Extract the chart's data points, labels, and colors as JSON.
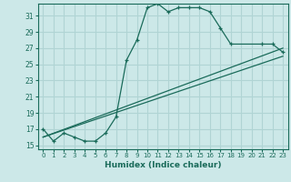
{
  "title": "",
  "xlabel": "Humidex (Indice chaleur)",
  "ylabel": "",
  "background_color": "#cce8e8",
  "grid_color": "#b0d4d4",
  "line_color": "#1a6b5a",
  "xlim": [
    -0.5,
    23.5
  ],
  "ylim": [
    14.5,
    32.5
  ],
  "yticks": [
    15,
    17,
    19,
    21,
    23,
    25,
    27,
    29,
    31
  ],
  "xticks": [
    0,
    1,
    2,
    3,
    4,
    5,
    6,
    7,
    8,
    9,
    10,
    11,
    12,
    13,
    14,
    15,
    16,
    17,
    18,
    19,
    20,
    21,
    22,
    23
  ],
  "series": [
    {
      "x": [
        0,
        1,
        2,
        3,
        4,
        5,
        6,
        7,
        8,
        9,
        10,
        11,
        12,
        13,
        14,
        15,
        16,
        17,
        18,
        21,
        22,
        23
      ],
      "y": [
        17,
        15.5,
        16.5,
        16,
        15.5,
        15.5,
        16.5,
        18.5,
        25.5,
        28.0,
        32.0,
        32.5,
        31.5,
        32.0,
        32.0,
        32.0,
        31.5,
        29.5,
        27.5,
        27.5,
        27.5,
        26.5
      ]
    },
    {
      "x": [
        0,
        23
      ],
      "y": [
        16.0,
        27.0
      ]
    },
    {
      "x": [
        0,
        23
      ],
      "y": [
        16.0,
        26.0
      ]
    }
  ]
}
